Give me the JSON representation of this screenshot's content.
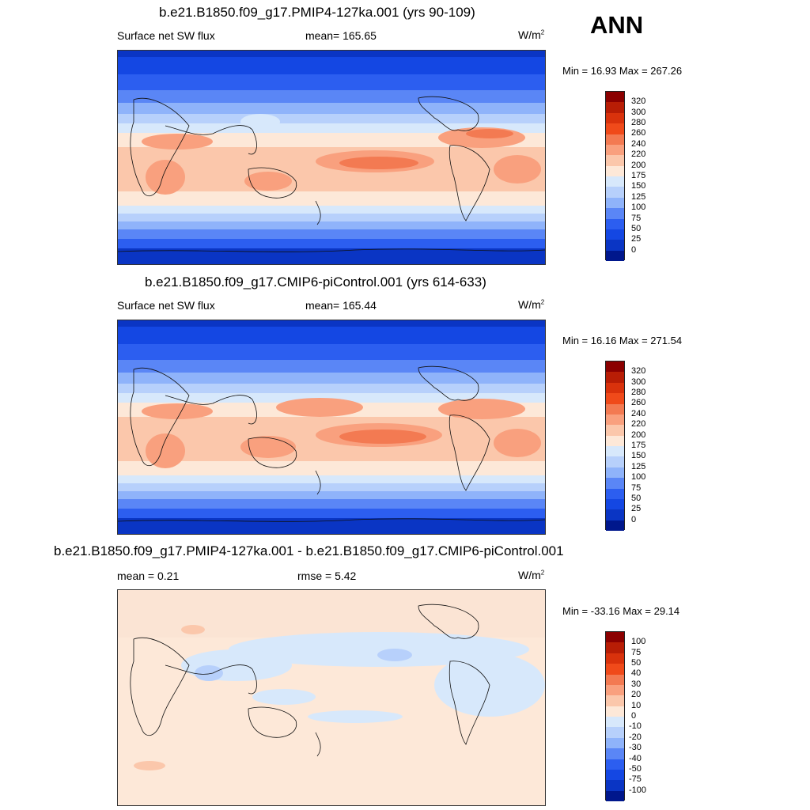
{
  "season_label": "ANN",
  "units_label": "W/m",
  "units_sup": "2",
  "panels": [
    {
      "title": "b.e21.B1850.f09_g17.PMIP4-127ka.001 (yrs 90-109)",
      "left_label": "Surface net SW flux",
      "center_label": "mean= 165.65",
      "minmax": "Min =  16.93 Max = 267.26"
    },
    {
      "title": "b.e21.B1850.f09_g17.CMIP6-piControl.001 (yrs 614-633)",
      "left_label": "Surface net SW flux",
      "center_label": "mean= 165.44",
      "minmax": "Min =  16.16 Max = 271.54"
    },
    {
      "title": "b.e21.B1850.f09_g17.PMIP4-127ka.001 - b.e21.B1850.f09_g17.CMIP6-piControl.001",
      "left_label": "mean =   0.21",
      "center_label": "rmse =   5.42",
      "minmax": "Min = -33.16 Max =  29.14"
    }
  ],
  "colorbars": {
    "abs_levels": [
      "320",
      "300",
      "280",
      "260",
      "240",
      "220",
      "200",
      "175",
      "150",
      "125",
      "100",
      "75",
      "50",
      "25",
      "0"
    ],
    "abs_colors": [
      "#8b0000",
      "#b81d05",
      "#d9320c",
      "#f04a1a",
      "#f37a52",
      "#f9a07e",
      "#fbc7ab",
      "#fde8d8",
      "#d7e8fb",
      "#b7d0fb",
      "#8fb3fa",
      "#5a86f6",
      "#2c5ef0",
      "#1447e3",
      "#0a35c4",
      "#00178c"
    ],
    "diff_levels": [
      "100",
      "75",
      "50",
      "40",
      "30",
      "20",
      "10",
      "0",
      "-10",
      "-20",
      "-30",
      "-40",
      "-50",
      "-75",
      "-100"
    ],
    "diff_colors": [
      "#8b0000",
      "#b81d05",
      "#d9320c",
      "#f04a1a",
      "#f37a52",
      "#f9a07e",
      "#fbc7ab",
      "#fde8d8",
      "#d7e8fb",
      "#b7d0fb",
      "#8fb3fa",
      "#5a86f6",
      "#2c5ef0",
      "#1447e3",
      "#0a35c4",
      "#00178c"
    ]
  },
  "chart_data": [
    {
      "type": "heatmap",
      "title": "b.e21.B1850.f09_g17.PMIP4-127ka.001 (yrs 90-109)",
      "variable": "Surface net SW flux",
      "units": "W/m2",
      "mean": 165.65,
      "min": 16.93,
      "max": 267.26,
      "contour_levels": [
        0,
        25,
        50,
        75,
        100,
        125,
        150,
        175,
        200,
        220,
        240,
        260,
        280,
        300,
        320
      ]
    },
    {
      "type": "heatmap",
      "title": "b.e21.B1850.f09_g17.CMIP6-piControl.001 (yrs 614-633)",
      "variable": "Surface net SW flux",
      "units": "W/m2",
      "mean": 165.44,
      "min": 16.16,
      "max": 271.54,
      "contour_levels": [
        0,
        25,
        50,
        75,
        100,
        125,
        150,
        175,
        200,
        220,
        240,
        260,
        280,
        300,
        320
      ]
    },
    {
      "type": "heatmap",
      "title": "b.e21.B1850.f09_g17.PMIP4-127ka.001 - b.e21.B1850.f09_g17.CMIP6-piControl.001",
      "units": "W/m2",
      "mean": 0.21,
      "rmse": 5.42,
      "min": -33.16,
      "max": 29.14,
      "contour_levels": [
        -100,
        -75,
        -50,
        -40,
        -30,
        -20,
        -10,
        0,
        10,
        20,
        30,
        40,
        50,
        75,
        100
      ]
    }
  ]
}
